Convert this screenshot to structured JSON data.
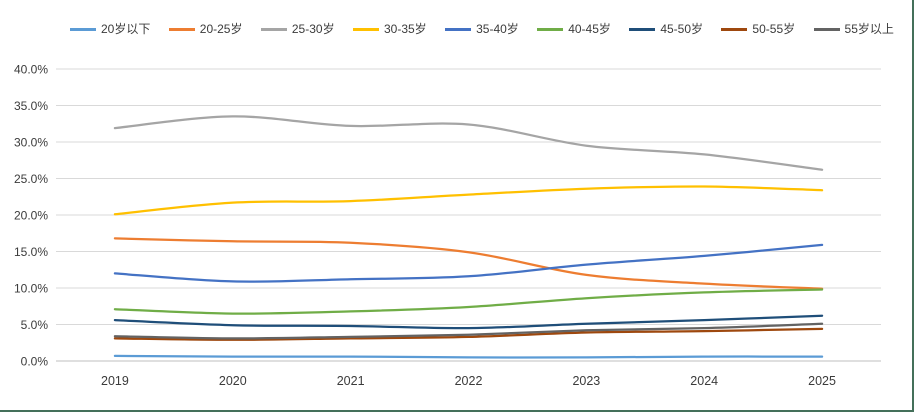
{
  "window": {
    "background": "#ffffff",
    "edge_border_color": "#44705A"
  },
  "chart_data": {
    "type": "line",
    "title": "",
    "line_style": "smooth",
    "grid": true,
    "legend_position": "top",
    "x": [
      "2019",
      "2020",
      "2021",
      "2022",
      "2023",
      "2024",
      "2025"
    ],
    "y_axis": {
      "min": 0,
      "max": 40,
      "step": 5,
      "tick_labels": [
        "40.0%",
        "35.0%",
        "30.0%",
        "25.0%",
        "20.0%",
        "15.0%",
        "10.0%",
        "5.0%",
        "0.0%"
      ]
    },
    "series": [
      {
        "name": "20岁以下",
        "color": "#5B9BD5",
        "values": [
          0.7,
          0.6,
          0.6,
          0.5,
          0.5,
          0.6,
          0.6
        ]
      },
      {
        "name": "20-25岁",
        "color": "#ED7D31",
        "values": [
          16.8,
          16.4,
          16.2,
          14.9,
          11.8,
          10.6,
          9.9
        ]
      },
      {
        "name": "25-30岁",
        "color": "#A5A5A5",
        "values": [
          31.9,
          33.5,
          32.2,
          32.4,
          29.5,
          28.3,
          26.2
        ]
      },
      {
        "name": "30-35岁",
        "color": "#FFC000",
        "values": [
          20.1,
          21.7,
          21.9,
          22.8,
          23.6,
          23.9,
          23.4
        ]
      },
      {
        "name": "35-40岁",
        "color": "#4472C4",
        "values": [
          12.0,
          10.9,
          11.2,
          11.6,
          13.2,
          14.4,
          15.9
        ]
      },
      {
        "name": "40-45岁",
        "color": "#70AD47",
        "values": [
          7.1,
          6.5,
          6.8,
          7.4,
          8.6,
          9.4,
          9.8
        ]
      },
      {
        "name": "45-50岁",
        "color": "#1F4E79",
        "values": [
          5.6,
          4.9,
          4.8,
          4.5,
          5.1,
          5.6,
          6.2
        ]
      },
      {
        "name": "50-55岁",
        "color": "#9E480E",
        "values": [
          3.1,
          2.9,
          3.1,
          3.3,
          3.9,
          4.1,
          4.4
        ]
      },
      {
        "name": "55岁以上",
        "color": "#636363",
        "values": [
          3.4,
          3.1,
          3.3,
          3.6,
          4.2,
          4.5,
          5.1
        ]
      }
    ],
    "style": {
      "gridline_color": "#D9D9D9",
      "axis_line_color": "#BFBFBF",
      "tick_label_color": "#3b3b3b",
      "line_width": 2.25
    }
  }
}
